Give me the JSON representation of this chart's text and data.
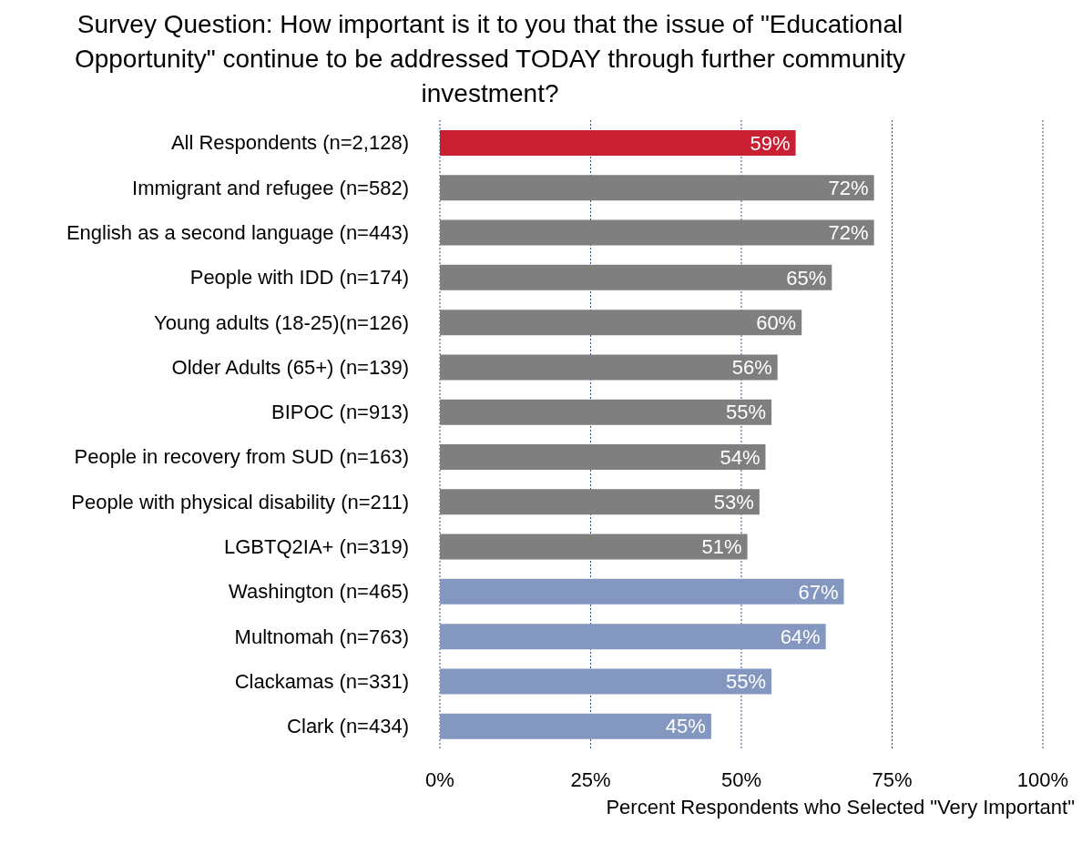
{
  "chart_data": {
    "type": "bar",
    "orientation": "horizontal",
    "title": "Survey Question: How important is it to you that the issue of \"Educational Opportunity\" continue to be addressed TODAY through further community investment?",
    "xlabel": "Percent Respondents who Selected \"Very Important\"",
    "categories": [
      "All Respondents (n=2,128)",
      "Immigrant and refugee (n=582)",
      "English as a second language (n=443)",
      "People with IDD (n=174)",
      "Young adults (18-25)(n=126)",
      "Older Adults (65+) (n=139)",
      "BIPOC (n=913)",
      "People in recovery from SUD (n=163)",
      "People with physical disability (n=211)",
      "LGBTQ2IA+ (n=319)",
      "Washington (n=465)",
      "Multnomah (n=763)",
      "Clackamas (n=331)",
      "Clark (n=434)"
    ],
    "values": [
      59,
      72,
      72,
      65,
      60,
      56,
      55,
      54,
      53,
      51,
      67,
      64,
      55,
      45
    ],
    "value_labels": [
      "59%",
      "72%",
      "72%",
      "65%",
      "60%",
      "56%",
      "55%",
      "54%",
      "53%",
      "51%",
      "67%",
      "64%",
      "55%",
      "45%"
    ],
    "colors": [
      "#c81f33",
      "#7f7f7f",
      "#7f7f7f",
      "#7f7f7f",
      "#7f7f7f",
      "#7f7f7f",
      "#7f7f7f",
      "#7f7f7f",
      "#7f7f7f",
      "#7f7f7f",
      "#8497c0",
      "#8497c0",
      "#8497c0",
      "#8497c0"
    ],
    "xlim": [
      0,
      100
    ],
    "xticks": [
      {
        "value": 0,
        "label": "0%"
      },
      {
        "value": 25,
        "label": "25%"
      },
      {
        "value": 50,
        "label": "50%"
      },
      {
        "value": 75,
        "label": "75%"
      },
      {
        "value": 100,
        "label": "100%"
      }
    ],
    "grid": "x"
  }
}
